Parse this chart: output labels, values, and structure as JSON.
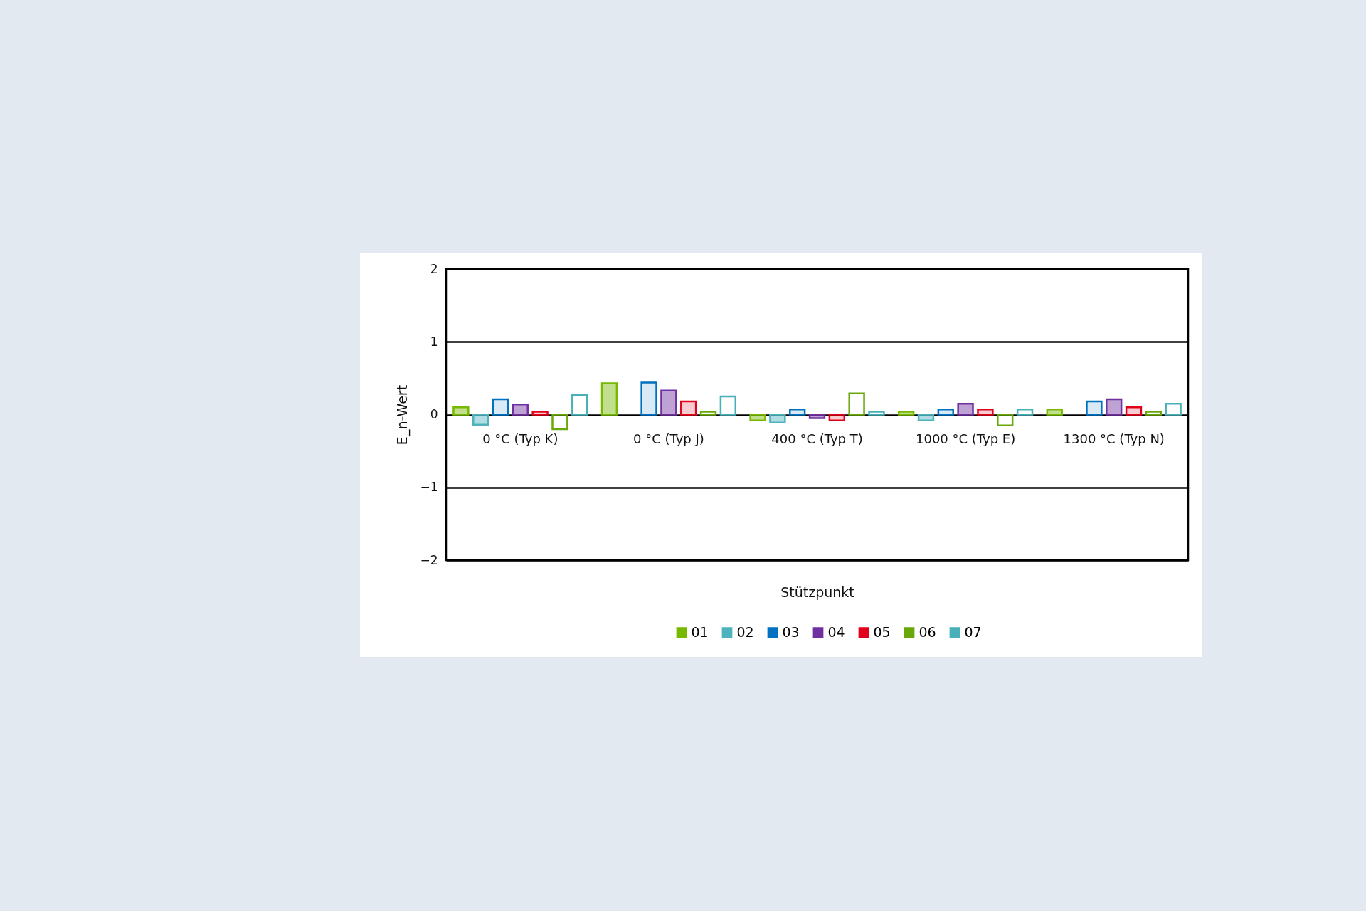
{
  "chart_data": {
    "type": "bar",
    "xlabel": "Stützpunkt",
    "ylabel": "E_n-Wert",
    "categories": [
      "0 °C (Typ K)",
      "0 °C (Typ J)",
      "400 °C (Typ T)",
      "1000 °C (Typ E)",
      "1300 °C (Typ N)"
    ],
    "series": [
      {
        "name": "01",
        "color": "#76b900",
        "values": [
          0.1,
          0.43,
          -0.08,
          0.04,
          0.07
        ]
      },
      {
        "name": "02",
        "color": "#4fb3bf",
        "values": [
          -0.14,
          null,
          -0.11,
          -0.08,
          null
        ]
      },
      {
        "name": "03",
        "color": "#0070c0",
        "values": [
          0.21,
          0.44,
          0.07,
          0.07,
          0.18
        ]
      },
      {
        "name": "04",
        "color": "#7030a0",
        "values": [
          0.14,
          0.33,
          -0.05,
          0.15,
          0.21
        ]
      },
      {
        "name": "05",
        "color": "#e3001b",
        "values": [
          0.04,
          0.18,
          -0.08,
          0.07,
          0.1
        ]
      },
      {
        "name": "06",
        "color": "#6aa80a",
        "values": [
          -0.2,
          0.04,
          0.29,
          -0.15,
          0.04
        ]
      },
      {
        "name": "07",
        "color": "#48b0b8",
        "values": [
          0.27,
          0.25,
          0.04,
          0.07,
          0.15
        ]
      }
    ],
    "ylim": [
      -2,
      2
    ],
    "yticks": [
      -2,
      -1,
      0,
      1,
      2
    ],
    "grid": true,
    "legend": "bottom"
  }
}
